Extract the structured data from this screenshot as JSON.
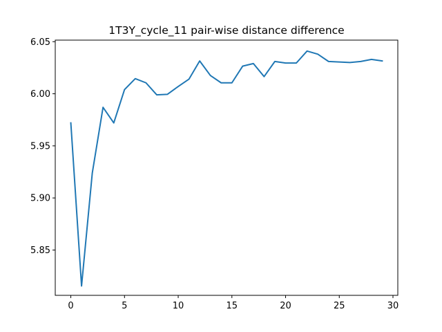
{
  "chart_data": {
    "type": "line",
    "title": "1T3Y_cycle_11 pair-wise distance difference",
    "xlabel": "",
    "ylabel": "",
    "xlim": [
      -1.45,
      30.45
    ],
    "ylim": [
      5.8065,
      6.0515
    ],
    "x_ticks": [
      0,
      5,
      10,
      15,
      20,
      25,
      30
    ],
    "x_tick_labels": [
      "0",
      "5",
      "10",
      "15",
      "20",
      "25",
      "30"
    ],
    "y_ticks": [
      5.85,
      5.9,
      5.95,
      6.0,
      6.05
    ],
    "y_tick_labels": [
      "5.85",
      "5.90",
      "5.95",
      "6.00",
      "6.05"
    ],
    "grid": false,
    "series": [
      {
        "name": "pair-wise distance difference",
        "color": "#1f77b4",
        "x": [
          0,
          1,
          2,
          3,
          4,
          5,
          6,
          7,
          8,
          9,
          10,
          11,
          12,
          13,
          14,
          15,
          16,
          17,
          18,
          19,
          20,
          21,
          22,
          23,
          24,
          25,
          26,
          27,
          28,
          29
        ],
        "values": [
          5.972,
          5.8155,
          5.924,
          5.987,
          5.972,
          6.004,
          6.0145,
          6.0105,
          5.999,
          5.9995,
          6.007,
          6.014,
          6.0315,
          6.0175,
          6.0105,
          6.0105,
          6.0265,
          6.029,
          6.0165,
          6.031,
          6.0295,
          6.0295,
          6.041,
          6.038,
          6.031,
          6.0305,
          6.03,
          6.031,
          6.033,
          6.0315
        ]
      }
    ]
  }
}
